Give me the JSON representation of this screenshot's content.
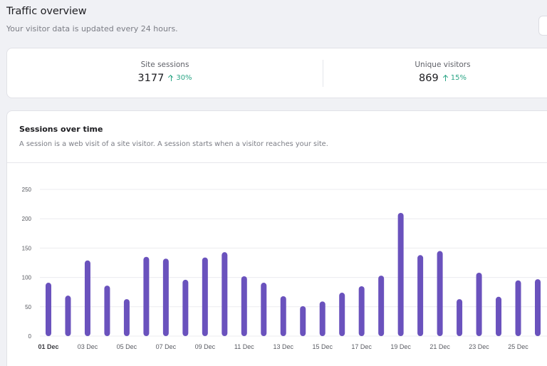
{
  "header": {
    "title": "Traffic overview",
    "subtitle": "Your visitor data is updated every 24 hours."
  },
  "stats": [
    {
      "label": "Site sessions",
      "value": "3177",
      "delta": "30%",
      "trend": "up"
    },
    {
      "label": "Unique visitors",
      "value": "869",
      "delta": "15%",
      "trend": "up"
    }
  ],
  "colors": {
    "bar": "#6a52bd",
    "positive": "#2aa585",
    "gridline": "#ececef"
  },
  "chart_card": {
    "title": "Sessions over time",
    "description": "A session is a web visit of a site visitor. A session starts when a visitor reaches your site."
  },
  "chart_data": {
    "type": "bar",
    "title": "Sessions over time",
    "xlabel": "",
    "ylabel": "",
    "ylim": [
      0,
      250
    ],
    "yticks": [
      0,
      50,
      100,
      150,
      200,
      250
    ],
    "grid": true,
    "categories": [
      "01 Dec",
      "02 Dec",
      "03 Dec",
      "04 Dec",
      "05 Dec",
      "06 Dec",
      "07 Dec",
      "08 Dec",
      "09 Dec",
      "10 Dec",
      "11 Dec",
      "12 Dec",
      "13 Dec",
      "14 Dec",
      "15 Dec",
      "16 Dec",
      "17 Dec",
      "18 Dec",
      "19 Dec",
      "20 Dec",
      "21 Dec",
      "22 Dec",
      "23 Dec",
      "24 Dec",
      "25 Dec",
      "26 Dec"
    ],
    "x_tick_labels_shown": [
      "01 Dec",
      "03 Dec",
      "05 Dec",
      "07 Dec",
      "09 Dec",
      "11 Dec",
      "13 Dec",
      "15 Dec",
      "17 Dec",
      "19 Dec",
      "21 Dec",
      "23 Dec",
      "25 Dec"
    ],
    "series": [
      {
        "name": "Sessions",
        "values": [
          91,
          69,
          129,
          86,
          63,
          135,
          132,
          96,
          134,
          143,
          102,
          91,
          68,
          51,
          59,
          74,
          85,
          103,
          210,
          138,
          145,
          63,
          108,
          67,
          95,
          97
        ]
      }
    ]
  }
}
